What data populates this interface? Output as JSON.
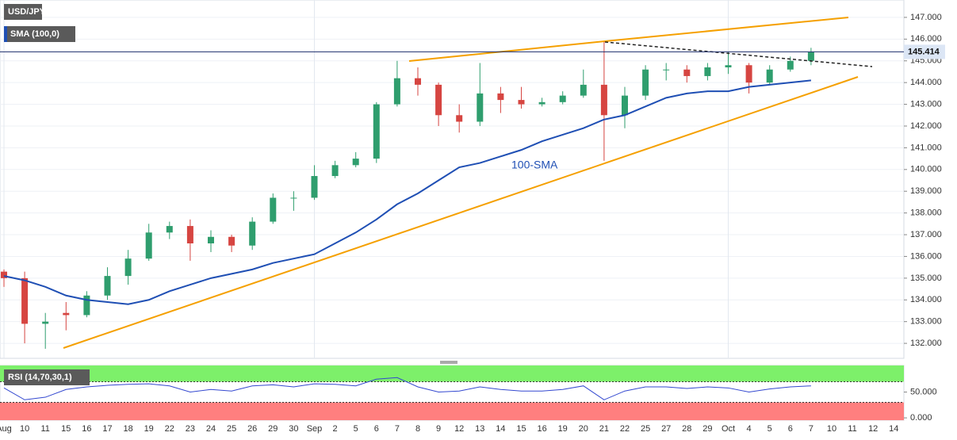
{
  "chart_data": {
    "type": "candlestick",
    "title": "USD/JPY",
    "categories": [
      "Aug",
      "10",
      "11",
      "15",
      "16",
      "17",
      "18",
      "19",
      "22",
      "23",
      "24",
      "25",
      "26",
      "29",
      "30",
      "Sep",
      "2",
      "5",
      "6",
      "7",
      "8",
      "9",
      "12",
      "13",
      "14",
      "15",
      "16",
      "19",
      "20",
      "21",
      "22",
      "25",
      "27",
      "28",
      "29",
      "Oct",
      "4",
      "5",
      "6",
      "7",
      "10",
      "11",
      "12",
      "14"
    ],
    "open": [
      135.3,
      135.0,
      132.9,
      133.4,
      133.3,
      134.2,
      135.1,
      135.9,
      137.1,
      137.4,
      136.6,
      136.9,
      136.5,
      137.6,
      138.7,
      138.7,
      139.7,
      140.2,
      140.5,
      143.0,
      144.2,
      143.9,
      142.5,
      142.2,
      143.5,
      143.2,
      143.0,
      143.1,
      143.4,
      143.9,
      142.5,
      143.4,
      144.6,
      144.6,
      144.3,
      144.7,
      144.8,
      144.0,
      144.6,
      145.0,
      null,
      null,
      null,
      null
    ],
    "high": [
      135.4,
      135.3,
      133.4,
      133.9,
      134.4,
      135.5,
      136.3,
      137.5,
      137.6,
      137.7,
      137.2,
      137.0,
      137.8,
      138.9,
      139.0,
      140.2,
      140.4,
      140.8,
      143.1,
      145.0,
      144.7,
      144.0,
      143.0,
      144.9,
      143.8,
      143.8,
      143.3,
      143.6,
      144.6,
      145.9,
      143.8,
      144.8,
      144.9,
      144.8,
      144.9,
      145.4,
      144.9,
      144.8,
      145.2,
      145.6,
      null,
      null,
      null,
      null
    ],
    "low": [
      134.6,
      132.0,
      131.75,
      132.6,
      133.2,
      134.0,
      134.7,
      135.8,
      136.8,
      135.8,
      136.2,
      136.2,
      136.3,
      137.5,
      138.1,
      138.6,
      139.6,
      140.1,
      140.3,
      142.9,
      143.4,
      142.0,
      141.7,
      142.0,
      142.6,
      142.8,
      142.9,
      143.0,
      143.3,
      140.4,
      141.9,
      143.2,
      144.1,
      144.0,
      144.1,
      144.4,
      143.5,
      143.9,
      144.5,
      144.8,
      null,
      null,
      null,
      null
    ],
    "close": [
      135.0,
      132.9,
      133.0,
      133.3,
      134.2,
      135.1,
      135.9,
      137.1,
      137.4,
      136.6,
      136.9,
      136.5,
      137.6,
      138.7,
      138.7,
      139.7,
      140.2,
      140.5,
      143.0,
      144.2,
      143.9,
      142.5,
      142.2,
      143.5,
      143.2,
      143.0,
      143.1,
      143.4,
      143.9,
      142.5,
      143.4,
      144.6,
      144.6,
      144.3,
      144.7,
      144.8,
      144.0,
      144.6,
      145.0,
      145.4,
      null,
      null,
      null,
      null
    ],
    "up_color": "#2f9e6e",
    "down_color": "#d64541",
    "series": [
      {
        "name": "SMA (100,0)",
        "color": "#1f4fb4",
        "values": [
          135.1,
          134.9,
          134.6,
          134.2,
          134.0,
          133.9,
          133.8,
          134.0,
          134.4,
          134.7,
          135.0,
          135.2,
          135.4,
          135.7,
          135.9,
          136.1,
          136.6,
          137.1,
          137.7,
          138.4,
          138.9,
          139.5,
          140.1,
          140.3,
          140.6,
          140.9,
          141.3,
          141.6,
          141.9,
          142.3,
          142.5,
          142.9,
          143.3,
          143.5,
          143.6,
          143.6,
          143.8,
          143.9,
          144.0,
          144.1,
          null,
          null,
          null,
          null
        ]
      }
    ],
    "annotation": "100-SMA",
    "last_price": {
      "value": 145.414,
      "label": "145.414"
    },
    "ylim": [
      131.31,
      147.8
    ],
    "yticks": [
      {
        "value": 132,
        "label": "132.000"
      },
      {
        "value": 133,
        "label": "133.000"
      },
      {
        "value": 134,
        "label": "134.000"
      },
      {
        "value": 135,
        "label": "135.000"
      },
      {
        "value": 136,
        "label": "136.000"
      },
      {
        "value": 137,
        "label": "137.000"
      },
      {
        "value": 138,
        "label": "138.000"
      },
      {
        "value": 139,
        "label": "139.000"
      },
      {
        "value": 140,
        "label": "140.000"
      },
      {
        "value": 141,
        "label": "141.000"
      },
      {
        "value": 142,
        "label": "142.000"
      },
      {
        "value": 143,
        "label": "143.000"
      },
      {
        "value": 144,
        "label": "144.000"
      },
      {
        "value": 145,
        "label": "145.000"
      },
      {
        "value": 146,
        "label": "146.000"
      },
      {
        "value": 147,
        "label": "147.000"
      }
    ],
    "grid": true,
    "rsi": {
      "title": "RSI (14,70,30,1)",
      "color": "#3348d0",
      "values": [
        58,
        35,
        40,
        55,
        60,
        63,
        65,
        66,
        62,
        50,
        55,
        52,
        62,
        64,
        60,
        66,
        65,
        62,
        75,
        78,
        60,
        50,
        52,
        60,
        55,
        52,
        52,
        55,
        62,
        35,
        52,
        60,
        60,
        57,
        60,
        58,
        50,
        56,
        60,
        62,
        null,
        null,
        null,
        null
      ],
      "overbought": 70,
      "oversold": 30,
      "ylim": [
        -4.5,
        101.5
      ],
      "yticks": [
        {
          "value": 50,
          "label": "50.000"
        },
        {
          "value": 0,
          "label": "0.000"
        }
      ]
    }
  }
}
